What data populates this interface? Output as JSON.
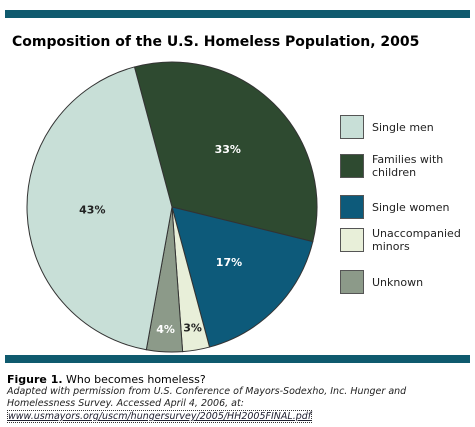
{
  "chart_data": {
    "type": "pie",
    "title": "Composition of the U.S. Homeless Population, 2005",
    "categories": [
      "Families with children",
      "Single women",
      "Unaccompanied minors",
      "Unknown",
      "Single men"
    ],
    "values": [
      33,
      17,
      3,
      4,
      43
    ],
    "value_labels": [
      "33%",
      "17%",
      "3%",
      "4%",
      "43%"
    ],
    "colors": [
      "#2e4a30",
      "#0d5a7a",
      "#e8efd9",
      "#8c9a89",
      "#c8dfd7"
    ],
    "legend_order": [
      4,
      0,
      1,
      2,
      3
    ]
  },
  "caption": {
    "figure_label": "Figure 1.",
    "text": "Who becomes homeless?",
    "source": "Adapted with permission from U.S. Conference of Mayors-Sodexho, Inc. Hunger and Homelessness Survey. Accessed April 4, 2006, at:",
    "link": "www.usmayors.org/uscm/hungersurvey/2005/HH2005FINAL.pdf"
  }
}
